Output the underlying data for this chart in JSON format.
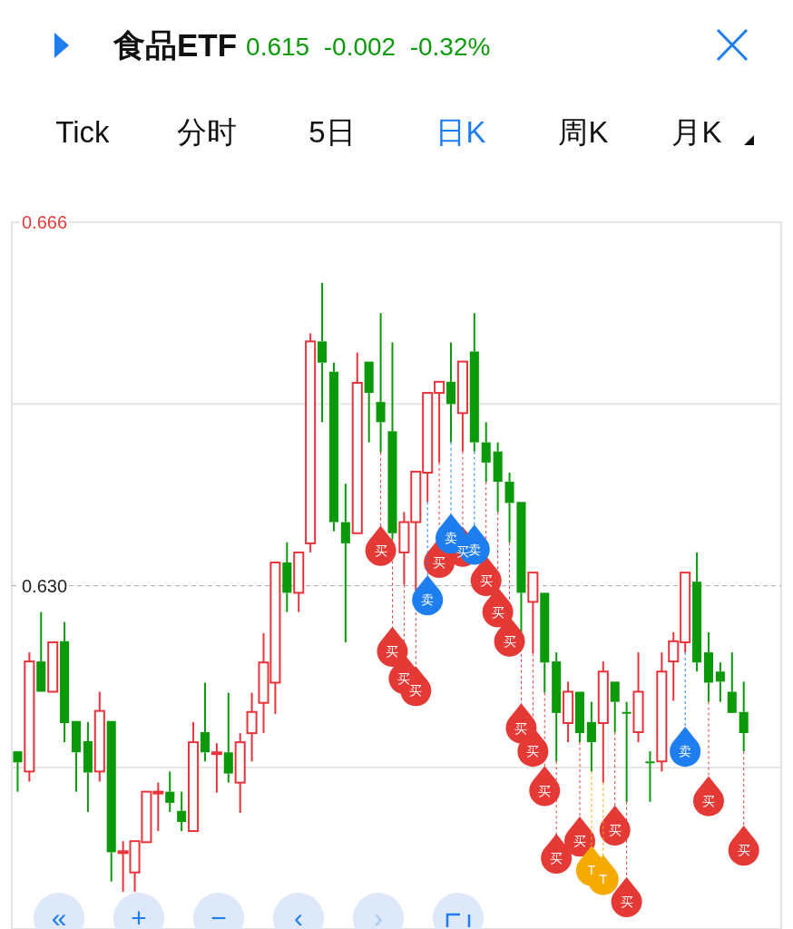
{
  "chart_data": {
    "type": "candlestick",
    "title": "食品ETF",
    "subtitle": "0.615  -0.002  -0.32%",
    "annotations": [
      "Tick",
      "分时",
      "5日",
      "日K",
      "周K",
      "月K",
      "«",
      "+",
      "−",
      "‹",
      "›"
    ],
    "categories": [
      null,
      null,
      null,
      null,
      null,
      null,
      null,
      null,
      null,
      null,
      null,
      null,
      null,
      null,
      null,
      null,
      null,
      null,
      null,
      null,
      null,
      null,
      null,
      null,
      null,
      null,
      null,
      null,
      null,
      null,
      null,
      null,
      null,
      null,
      null,
      null,
      null,
      null,
      null,
      null,
      null,
      null,
      null,
      null,
      null,
      null,
      null,
      null,
      null,
      null,
      null,
      null,
      null,
      null,
      null,
      null,
      null,
      null,
      null,
      null,
      null,
      null,
      null
    ],
    "ohlc": [
      [
        0.6136,
        0.6136,
        0.6096,
        0.6125
      ],
      [
        0.6116,
        0.6234,
        0.6106,
        0.6225
      ],
      [
        0.6225,
        0.6274,
        0.6195,
        0.6195
      ],
      [
        0.6195,
        0.6244,
        0.6195,
        0.6244
      ],
      [
        0.6245,
        0.6264,
        0.6145,
        0.6164
      ],
      [
        0.6166,
        0.6166,
        0.6096,
        0.6135
      ],
      [
        0.6146,
        0.6165,
        0.6076,
        0.6115
      ],
      [
        0.6116,
        0.6195,
        0.6106,
        0.6176
      ],
      [
        0.6166,
        0.6166,
        0.6007,
        0.6036
      ],
      [
        0.6036,
        0.6047,
        0.5997,
        0.6037
      ],
      [
        0.6016,
        0.6047,
        0.5997,
        0.6047
      ],
      [
        0.6046,
        0.6096,
        0.6046,
        0.6096
      ],
      [
        0.6095,
        0.6105,
        0.6057,
        0.6096
      ],
      [
        0.6096,
        0.6116,
        0.6076,
        0.6085
      ],
      [
        0.6077,
        0.6096,
        0.6057,
        0.6066
      ],
      [
        0.6057,
        0.6165,
        0.6057,
        0.6145
      ],
      [
        0.6155,
        0.6204,
        0.6126,
        0.6135
      ],
      [
        0.6134,
        0.6144,
        0.6095,
        0.6135
      ],
      [
        0.6135,
        0.6194,
        0.6105,
        0.6114
      ],
      [
        0.6105,
        0.6154,
        0.6075,
        0.6145
      ],
      [
        0.6154,
        0.6194,
        0.6126,
        0.6175
      ],
      [
        0.6184,
        0.6253,
        0.6154,
        0.6224
      ],
      [
        0.6204,
        0.6323,
        0.6173,
        0.6323
      ],
      [
        0.6323,
        0.6343,
        0.6274,
        0.6293
      ],
      [
        0.6293,
        0.6333,
        0.6274,
        0.6333
      ],
      [
        0.6342,
        0.655,
        0.6333,
        0.6542
      ],
      [
        0.6542,
        0.66,
        0.6462,
        0.6521
      ],
      [
        0.6512,
        0.6521,
        0.6354,
        0.6363
      ],
      [
        0.6363,
        0.6401,
        0.6244,
        0.6342
      ],
      [
        0.6352,
        0.6531,
        0.6352,
        0.6501
      ],
      [
        0.6522,
        0.6522,
        0.6442,
        0.6491
      ],
      [
        0.6482,
        0.657,
        0.6432,
        0.6462
      ],
      [
        0.6453,
        0.6541,
        0.6346,
        0.6352
      ],
      [
        0.6333,
        0.6373,
        0.6301,
        0.6363
      ],
      [
        0.6363,
        0.6413,
        0.6295,
        0.6413
      ],
      [
        0.6412,
        0.6491,
        0.6383,
        0.6491
      ],
      [
        0.6491,
        0.6502,
        0.6422,
        0.6502
      ],
      [
        0.6502,
        0.6541,
        0.6442,
        0.648
      ],
      [
        0.6471,
        0.6522,
        0.6433,
        0.6522
      ],
      [
        0.6532,
        0.657,
        0.6433,
        0.6442
      ],
      [
        0.6442,
        0.6462,
        0.6403,
        0.6422
      ],
      [
        0.6433,
        0.6442,
        0.6373,
        0.6403
      ],
      [
        0.6403,
        0.6412,
        0.6343,
        0.6382
      ],
      [
        0.6383,
        0.6383,
        0.6254,
        0.6293
      ],
      [
        0.6284,
        0.6313,
        0.6233,
        0.6313
      ],
      [
        0.6293,
        0.6293,
        0.6194,
        0.6224
      ],
      [
        0.6225,
        0.6234,
        0.6126,
        0.6174
      ],
      [
        0.6164,
        0.6205,
        0.6145,
        0.6195
      ],
      [
        0.6195,
        0.6195,
        0.6145,
        0.6154
      ],
      [
        0.6165,
        0.6185,
        0.6116,
        0.6145
      ],
      [
        0.6164,
        0.6225,
        0.6105,
        0.6215
      ],
      [
        0.6205,
        0.6205,
        0.6155,
        0.6185
      ],
      [
        0.6175,
        0.6185,
        0.6086,
        0.6174
      ],
      [
        0.6155,
        0.6234,
        0.6145,
        0.6195
      ],
      [
        0.6126,
        0.6136,
        0.6086,
        0.6125
      ],
      [
        0.6126,
        0.6234,
        0.6116,
        0.6215
      ],
      [
        0.6225,
        0.6254,
        0.6186,
        0.6245
      ],
      [
        0.6244,
        0.6313,
        0.6234,
        0.6313
      ],
      [
        0.6304,
        0.6333,
        0.6215,
        0.6224
      ],
      [
        0.6234,
        0.6254,
        0.6185,
        0.6204
      ],
      [
        0.6215,
        0.6224,
        0.6185,
        0.6205
      ],
      [
        0.6195,
        0.6234,
        0.6174,
        0.6174
      ],
      [
        0.6175,
        0.6205,
        0.6136,
        0.6154
      ]
    ],
    "series": [
      {
        "type": "scatter",
        "color": "#e53935",
        "values": [
          null,
          null,
          null,
          null,
          null,
          null,
          null,
          null,
          null,
          null,
          null,
          null,
          null,
          null,
          null,
          null,
          null,
          null,
          null,
          null,
          null,
          null,
          null,
          null,
          null,
          null,
          null,
          null,
          null,
          null,
          null,
          0.6335,
          0.6235,
          0.6208,
          0.6196,
          null,
          0.6323,
          null,
          0.6334,
          null,
          0.6305,
          0.6274,
          0.6245,
          0.6159,
          0.6136,
          0.6097,
          0.603,
          null,
          0.6047,
          null,
          null,
          0.6058,
          0.5987,
          null,
          null,
          null,
          null,
          null,
          null,
          0.6087,
          null,
          null,
          0.6038
        ],
        "value_labels": [
          null,
          null,
          null,
          null,
          null,
          null,
          null,
          null,
          null,
          null,
          null,
          null,
          null,
          null,
          null,
          null,
          null,
          null,
          null,
          null,
          null,
          null,
          null,
          null,
          null,
          null,
          null,
          null,
          null,
          null,
          null,
          "买",
          "买",
          "买",
          "买",
          null,
          "买",
          null,
          "买",
          null,
          "买",
          "买",
          "买",
          "买",
          "买",
          "买",
          "买",
          null,
          "买",
          null,
          null,
          "买",
          "买",
          null,
          null,
          null,
          null,
          null,
          null,
          "买",
          null,
          null,
          "买"
        ]
      },
      {
        "type": "scatter",
        "color": "#f5aa00",
        "values": [
          null,
          null,
          null,
          null,
          null,
          null,
          null,
          null,
          null,
          null,
          null,
          null,
          null,
          null,
          null,
          null,
          null,
          null,
          null,
          null,
          null,
          null,
          null,
          null,
          null,
          null,
          null,
          null,
          null,
          null,
          null,
          null,
          null,
          null,
          null,
          null,
          null,
          null,
          null,
          null,
          null,
          null,
          null,
          null,
          null,
          null,
          null,
          null,
          null,
          0.6018,
          0.6009,
          null,
          null,
          null,
          null,
          null,
          null,
          null,
          null,
          null,
          null,
          null,
          null
        ],
        "value_labels": [
          null,
          null,
          null,
          null,
          null,
          null,
          null,
          null,
          null,
          null,
          null,
          null,
          null,
          null,
          null,
          null,
          null,
          null,
          null,
          null,
          null,
          null,
          null,
          null,
          null,
          null,
          null,
          null,
          null,
          null,
          null,
          null,
          null,
          null,
          null,
          null,
          null,
          null,
          null,
          null,
          null,
          null,
          null,
          null,
          null,
          null,
          null,
          null,
          null,
          "T",
          "T",
          null,
          null,
          null,
          null,
          null,
          null,
          null,
          null,
          null,
          null,
          null,
          null
        ]
      },
      {
        "type": "scatter",
        "color": "#1e7ef0",
        "values": [
          null,
          null,
          null,
          null,
          null,
          null,
          null,
          null,
          null,
          null,
          null,
          null,
          null,
          null,
          null,
          null,
          null,
          null,
          null,
          null,
          null,
          null,
          null,
          null,
          null,
          null,
          null,
          null,
          null,
          null,
          null,
          null,
          null,
          null,
          null,
          0.6286,
          null,
          0.6347,
          null,
          0.6336,
          null,
          null,
          null,
          null,
          null,
          null,
          null,
          null,
          null,
          null,
          null,
          null,
          null,
          null,
          null,
          null,
          null,
          0.6136,
          null,
          null,
          null,
          null,
          null
        ],
        "value_labels": [
          null,
          null,
          null,
          null,
          null,
          null,
          null,
          null,
          null,
          null,
          null,
          null,
          null,
          null,
          null,
          null,
          null,
          null,
          null,
          null,
          null,
          null,
          null,
          null,
          null,
          null,
          null,
          null,
          null,
          null,
          null,
          null,
          null,
          null,
          null,
          "卖",
          null,
          "卖",
          null,
          "卖",
          null,
          null,
          null,
          null,
          null,
          null,
          null,
          null,
          null,
          null,
          null,
          null,
          null,
          null,
          null,
          null,
          null,
          "卖",
          null,
          null,
          null,
          null,
          null
        ]
      }
    ],
    "ylim": [
      0.596,
      0.666
    ],
    "yticks": [
      {
        "value": 0.666,
        "label": "0.666"
      },
      {
        "value": 0.648,
        "label": null
      },
      {
        "value": 0.63,
        "label": "0.630"
      },
      {
        "value": 0.612,
        "label": null
      }
    ],
    "ref_lines": [
      {
        "axis": "y",
        "value": 0.63,
        "label": null,
        "color": "#aaaaaa",
        "line_style": "dashed"
      }
    ],
    "grid": "y",
    "tick_labels": "y"
  }
}
